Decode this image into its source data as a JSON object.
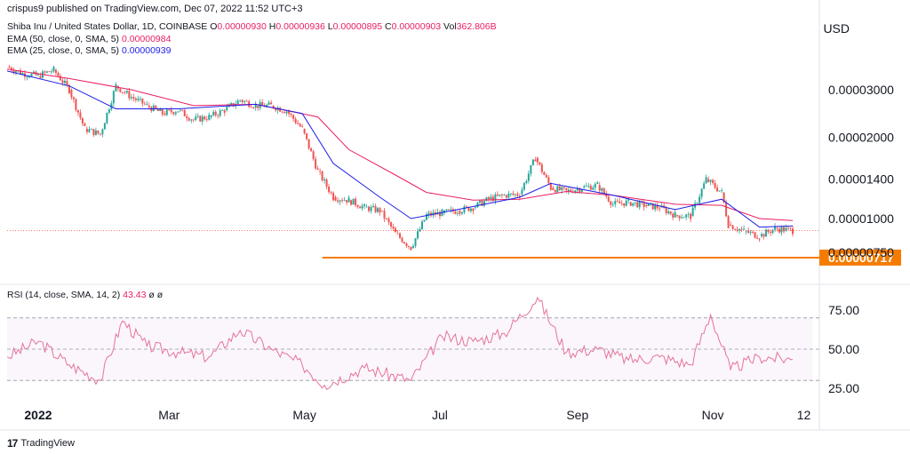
{
  "header": {
    "published": "crispus9 published on TradingView.com, Dec 07, 2022 11:52 UTC+3"
  },
  "legend": {
    "symbol_line": {
      "name": "Shiba Inu / United States Dollar, 1D, COINBASE",
      "o_label": "O",
      "o_value": "0.00000930",
      "h_label": "H",
      "h_value": "0.00000936",
      "l_label": "L",
      "l_value": "0.00000895",
      "c_label": "C",
      "c_value": "0.00000903",
      "vol_label": "Vol",
      "vol_value": "362.806B"
    },
    "ema50": {
      "label": "EMA (50, close, 0, SMA, 5)",
      "value": "0.00000984",
      "color": "#e91e63"
    },
    "ema25": {
      "label": "EMA (25, close, 0, SMA, 5)",
      "value": "0.00000939",
      "color": "#1e1ee9"
    },
    "rsi": {
      "label": "RSI (14, close, SMA, 14, 2)",
      "value": "43.43",
      "extra1": "ø",
      "extra2": "ø"
    }
  },
  "axis": {
    "currency": "USD",
    "price_ticks": [
      "0.00003000",
      "0.00002000",
      "0.00001400",
      "0.00001000",
      "0.00000750"
    ],
    "support_label": "0.00000717",
    "rsi_ticks": [
      "75.00",
      "50.00",
      "25.00"
    ],
    "time_ticks": [
      "2022",
      "Mar",
      "May",
      "Jul",
      "Sep",
      "Nov",
      "12"
    ]
  },
  "footer": {
    "brand": "TradingView",
    "logo_text": "17"
  },
  "colors": {
    "up": "#26a69a",
    "down": "#ef5350",
    "ema50": "#e91e63",
    "ema25": "#1e1ee9",
    "support": "#f57c00",
    "rsi": "#e57399",
    "grid": "#e0e3eb"
  },
  "chart_data": {
    "type": "candlestick",
    "symbol": "Shiba Inu / United States Dollar",
    "interval": "1D",
    "exchange": "COINBASE",
    "y_scale": "log",
    "current_close": 9.03e-06,
    "support_level": 7.17e-06,
    "price_series": [
      {
        "date": "2021-12-18",
        "close": 3.65e-05
      },
      {
        "date": "2021-12-25",
        "close": 3.45e-05
      },
      {
        "date": "2022-01-01",
        "close": 3.38e-05
      },
      {
        "date": "2022-01-08",
        "close": 3.55e-05
      },
      {
        "date": "2022-01-15",
        "close": 3e-05
      },
      {
        "date": "2022-01-22",
        "close": 2.15e-05
      },
      {
        "date": "2022-01-29",
        "close": 2.05e-05
      },
      {
        "date": "2022-02-05",
        "close": 3.1e-05
      },
      {
        "date": "2022-02-12",
        "close": 2.82e-05
      },
      {
        "date": "2022-02-19",
        "close": 2.62e-05
      },
      {
        "date": "2022-02-26",
        "close": 2.45e-05
      },
      {
        "date": "2022-03-05",
        "close": 2.52e-05
      },
      {
        "date": "2022-03-12",
        "close": 2.32e-05
      },
      {
        "date": "2022-03-19",
        "close": 2.38e-05
      },
      {
        "date": "2022-03-26",
        "close": 2.52e-05
      },
      {
        "date": "2022-04-02",
        "close": 2.75e-05
      },
      {
        "date": "2022-04-09",
        "close": 2.62e-05
      },
      {
        "date": "2022-04-16",
        "close": 2.62e-05
      },
      {
        "date": "2022-04-23",
        "close": 2.5e-05
      },
      {
        "date": "2022-04-30",
        "close": 2.15e-05
      },
      {
        "date": "2022-05-07",
        "close": 1.5e-05
      },
      {
        "date": "2022-05-14",
        "close": 1.2e-05
      },
      {
        "date": "2022-05-21",
        "close": 1.17e-05
      },
      {
        "date": "2022-05-28",
        "close": 1.1e-05
      },
      {
        "date": "2022-06-04",
        "close": 1.07e-05
      },
      {
        "date": "2022-06-11",
        "close": 8.8e-06
      },
      {
        "date": "2022-06-18",
        "close": 7.8e-06
      },
      {
        "date": "2022-06-25",
        "close": 1.03e-05
      },
      {
        "date": "2022-07-02",
        "close": 1.05e-05
      },
      {
        "date": "2022-07-09",
        "close": 1.07e-05
      },
      {
        "date": "2022-07-16",
        "close": 1.1e-05
      },
      {
        "date": "2022-07-23",
        "close": 1.18e-05
      },
      {
        "date": "2022-07-30",
        "close": 1.22e-05
      },
      {
        "date": "2022-08-06",
        "close": 1.23e-05
      },
      {
        "date": "2022-08-13",
        "close": 1.68e-05
      },
      {
        "date": "2022-08-20",
        "close": 1.3e-05
      },
      {
        "date": "2022-08-27",
        "close": 1.26e-05
      },
      {
        "date": "2022-09-03",
        "close": 1.3e-05
      },
      {
        "date": "2022-09-10",
        "close": 1.33e-05
      },
      {
        "date": "2022-09-17",
        "close": 1.13e-05
      },
      {
        "date": "2022-09-24",
        "close": 1.15e-05
      },
      {
        "date": "2022-10-01",
        "close": 1.12e-05
      },
      {
        "date": "2022-10-08",
        "close": 1.1e-05
      },
      {
        "date": "2022-10-15",
        "close": 1.03e-05
      },
      {
        "date": "2022-10-22",
        "close": 1.02e-05
      },
      {
        "date": "2022-10-29",
        "close": 1.4e-05
      },
      {
        "date": "2022-11-05",
        "close": 1.25e-05
      },
      {
        "date": "2022-11-08",
        "close": 9.5e-06
      },
      {
        "date": "2022-11-15",
        "close": 9e-06
      },
      {
        "date": "2022-11-22",
        "close": 8.6e-06
      },
      {
        "date": "2022-11-29",
        "close": 9.2e-06
      },
      {
        "date": "2022-12-07",
        "close": 9.03e-06
      }
    ],
    "ema50_series": [
      {
        "date": "2021-12-18",
        "value": 3.58e-05
      },
      {
        "date": "2022-01-15",
        "value": 3.3e-05
      },
      {
        "date": "2022-02-12",
        "value": 3e-05
      },
      {
        "date": "2022-03-12",
        "value": 2.62e-05
      },
      {
        "date": "2022-04-09",
        "value": 2.65e-05
      },
      {
        "date": "2022-05-07",
        "value": 2.38e-05
      },
      {
        "date": "2022-05-21",
        "value": 1.8e-05
      },
      {
        "date": "2022-06-11",
        "value": 1.45e-05
      },
      {
        "date": "2022-06-25",
        "value": 1.25e-05
      },
      {
        "date": "2022-07-16",
        "value": 1.17e-05
      },
      {
        "date": "2022-08-06",
        "value": 1.18e-05
      },
      {
        "date": "2022-08-27",
        "value": 1.26e-05
      },
      {
        "date": "2022-09-17",
        "value": 1.22e-05
      },
      {
        "date": "2022-10-15",
        "value": 1.13e-05
      },
      {
        "date": "2022-11-05",
        "value": 1.12e-05
      },
      {
        "date": "2022-11-22",
        "value": 1e-05
      },
      {
        "date": "2022-12-07",
        "value": 9.84e-06
      }
    ],
    "ema25_series": [
      {
        "date": "2021-12-18",
        "value": 3.52e-05
      },
      {
        "date": "2022-01-15",
        "value": 3.1e-05
      },
      {
        "date": "2022-02-05",
        "value": 2.55e-05
      },
      {
        "date": "2022-03-05",
        "value": 2.55e-05
      },
      {
        "date": "2022-04-09",
        "value": 2.65e-05
      },
      {
        "date": "2022-04-30",
        "value": 2.45e-05
      },
      {
        "date": "2022-05-14",
        "value": 1.6e-05
      },
      {
        "date": "2022-06-04",
        "value": 1.2e-05
      },
      {
        "date": "2022-06-18",
        "value": 1e-05
      },
      {
        "date": "2022-07-09",
        "value": 1.08e-05
      },
      {
        "date": "2022-08-06",
        "value": 1.2e-05
      },
      {
        "date": "2022-08-20",
        "value": 1.35e-05
      },
      {
        "date": "2022-09-17",
        "value": 1.22e-05
      },
      {
        "date": "2022-10-15",
        "value": 1.08e-05
      },
      {
        "date": "2022-11-05",
        "value": 1.18e-05
      },
      {
        "date": "2022-11-22",
        "value": 9.3e-06
      },
      {
        "date": "2022-12-07",
        "value": 9.39e-06
      }
    ],
    "rsi_series": [
      {
        "date": "2021-12-18",
        "value": 45
      },
      {
        "date": "2022-01-01",
        "value": 55
      },
      {
        "date": "2022-01-15",
        "value": 40
      },
      {
        "date": "2022-01-29",
        "value": 30
      },
      {
        "date": "2022-02-08",
        "value": 68
      },
      {
        "date": "2022-02-19",
        "value": 52
      },
      {
        "date": "2022-03-05",
        "value": 48
      },
      {
        "date": "2022-03-19",
        "value": 45
      },
      {
        "date": "2022-04-02",
        "value": 62
      },
      {
        "date": "2022-04-16",
        "value": 50
      },
      {
        "date": "2022-04-30",
        "value": 40
      },
      {
        "date": "2022-05-10",
        "value": 27
      },
      {
        "date": "2022-05-28",
        "value": 38
      },
      {
        "date": "2022-06-18",
        "value": 30
      },
      {
        "date": "2022-07-02",
        "value": 58
      },
      {
        "date": "2022-07-16",
        "value": 55
      },
      {
        "date": "2022-07-30",
        "value": 60
      },
      {
        "date": "2022-08-14",
        "value": 83
      },
      {
        "date": "2022-08-27",
        "value": 48
      },
      {
        "date": "2022-09-10",
        "value": 50
      },
      {
        "date": "2022-09-24",
        "value": 43
      },
      {
        "date": "2022-10-08",
        "value": 45
      },
      {
        "date": "2022-10-22",
        "value": 40
      },
      {
        "date": "2022-10-31",
        "value": 72
      },
      {
        "date": "2022-11-09",
        "value": 37
      },
      {
        "date": "2022-11-22",
        "value": 45
      },
      {
        "date": "2022-12-07",
        "value": 43.43
      }
    ],
    "rsi_levels": [
      70,
      50,
      30
    ],
    "x_range": [
      "2021-12-18",
      "2022-12-15"
    ]
  }
}
